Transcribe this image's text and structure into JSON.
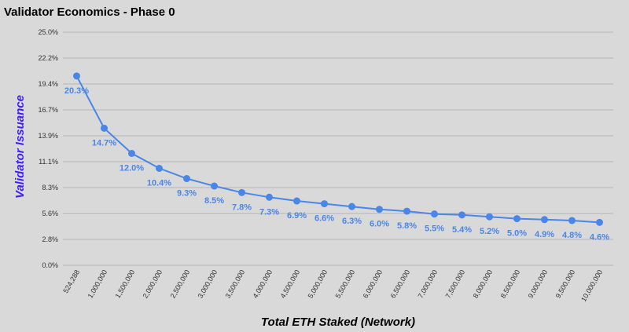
{
  "chart_data": {
    "type": "line",
    "title": "Validator Economics - Phase 0",
    "xlabel": "Total ETH Staked (Network)",
    "ylabel": "Validator Issuance",
    "categories": [
      "524,288",
      "1,000,000",
      "1,500,000",
      "2,000,000",
      "2,500,000",
      "3,000,000",
      "3,500,000",
      "4,000,000",
      "4,500,000",
      "5,000,000",
      "5,500,000",
      "6,000,000",
      "6,500,000",
      "7,000,000",
      "7,500,000",
      "8,000,000",
      "8,500,000",
      "9,000,000",
      "9,500,000",
      "10,000,000"
    ],
    "values": [
      20.3,
      14.7,
      12.0,
      10.4,
      9.3,
      8.5,
      7.8,
      7.3,
      6.9,
      6.6,
      6.3,
      6.0,
      5.8,
      5.5,
      5.4,
      5.2,
      5.0,
      4.9,
      4.8,
      4.6
    ],
    "data_labels": [
      "20.3%",
      "14.7%",
      "12.0%",
      "10.4%",
      "9.3%",
      "8.5%",
      "7.8%",
      "7.3%",
      "6.9%",
      "6.6%",
      "6.3%",
      "6.0%",
      "5.8%",
      "5.5%",
      "5.4%",
      "5.2%",
      "5.0%",
      "4.9%",
      "4.8%",
      "4.6%"
    ],
    "y_ticks": [
      "0.0%",
      "2.8%",
      "5.6%",
      "8.3%",
      "11.1%",
      "13.9%",
      "16.7%",
      "19.4%",
      "22.2%",
      "25.0%"
    ],
    "ylim": [
      0,
      25
    ],
    "grid": true,
    "legend": "none",
    "colors": {
      "series": "#4a86e8",
      "data_label": "#4a86e8",
      "ylabel": "#3d1aff",
      "background": "#d9d9d9"
    }
  }
}
